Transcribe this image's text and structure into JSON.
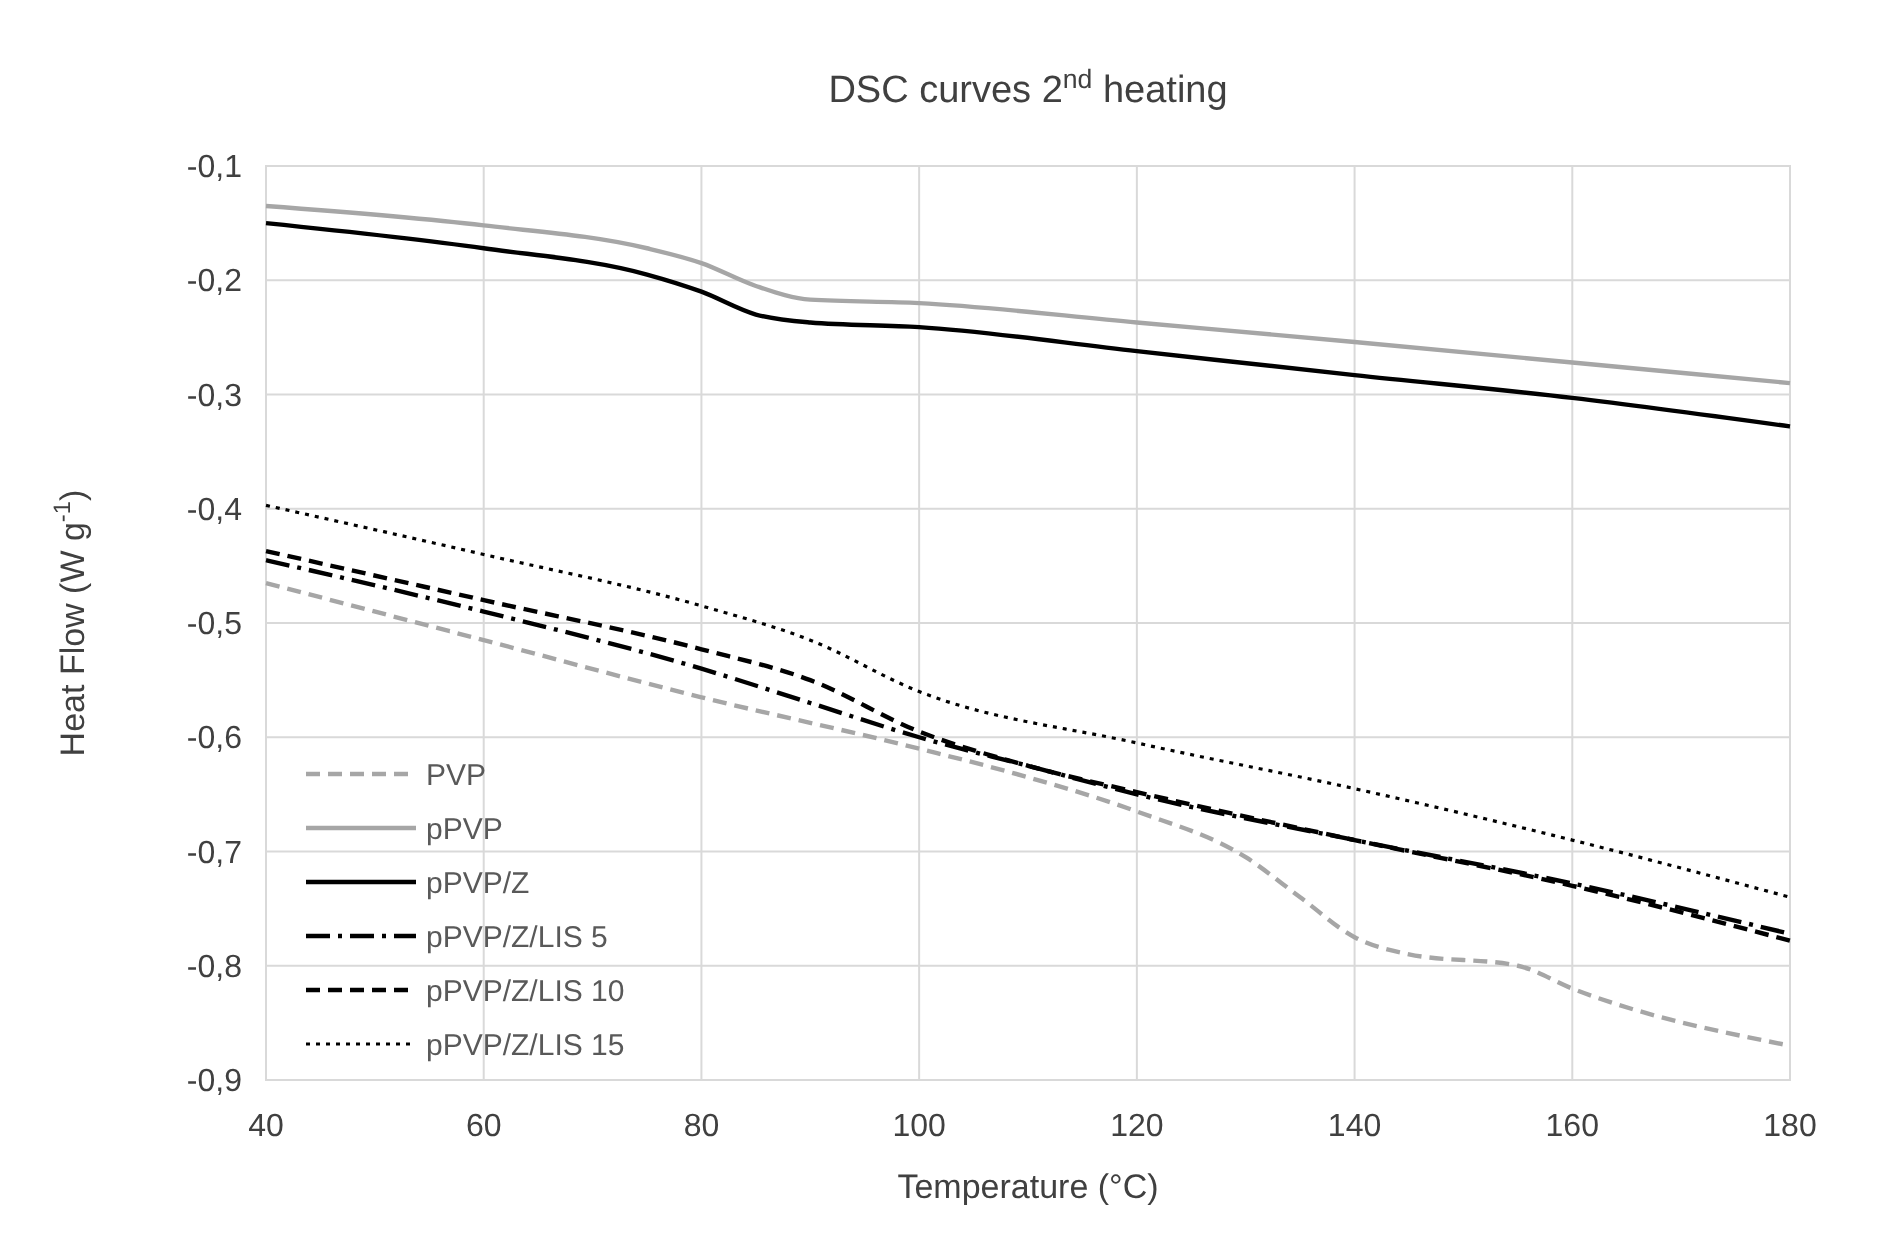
{
  "chart_data": {
    "type": "line",
    "title": "DSC curves 2$^{nd}$ heating",
    "xlabel": "Temperature (°C)",
    "ylabel": "Heat Flow (W g$^{-1}$)",
    "xlim": [
      40,
      180
    ],
    "xticks": [
      40,
      60,
      80,
      100,
      120,
      140,
      160,
      180
    ],
    "ylim": [
      -0.9,
      -0.1
    ],
    "yticks": [
      {
        "value": -0.9,
        "label": "-0,9"
      },
      {
        "value": -0.8,
        "label": "-0,8"
      },
      {
        "value": -0.7,
        "label": "-0,7"
      },
      {
        "value": -0.6,
        "label": "-0,6"
      },
      {
        "value": -0.5,
        "label": "-0,5"
      },
      {
        "value": -0.4,
        "label": "-0,4"
      },
      {
        "value": -0.3,
        "label": "-0,3"
      },
      {
        "value": -0.2,
        "label": "-0,2"
      },
      {
        "value": -0.1,
        "label": "-0,1"
      }
    ],
    "grid": true,
    "legend": "bottom left",
    "series": [
      {
        "name": "PVP",
        "color": "#a6a6a6",
        "line_style": "dashed",
        "x": [
          40,
          60,
          80,
          100,
          110,
          120,
          130,
          135,
          140,
          145,
          155,
          160,
          180
        ],
        "values": [
          -0.465,
          -0.515,
          -0.565,
          -0.61,
          -0.635,
          -0.665,
          -0.705,
          -0.74,
          -0.775,
          -0.79,
          -0.8,
          -0.82,
          -0.87
        ]
      },
      {
        "name": "pPVP",
        "color": "#a6a6a6",
        "line_style": "solid",
        "x": [
          40,
          60,
          75,
          80,
          85,
          90,
          100,
          120,
          140,
          160,
          180
        ],
        "values": [
          -0.135,
          -0.152,
          -0.172,
          -0.185,
          -0.205,
          -0.217,
          -0.22,
          -0.237,
          -0.254,
          -0.272,
          -0.29
        ]
      },
      {
        "name": "pPVP/Z",
        "color": "#000000",
        "line_style": "solid",
        "x": [
          40,
          60,
          75,
          80,
          85,
          90,
          100,
          120,
          140,
          160,
          180
        ],
        "values": [
          -0.15,
          -0.172,
          -0.195,
          -0.21,
          -0.23,
          -0.237,
          -0.241,
          -0.262,
          -0.283,
          -0.303,
          -0.328
        ]
      },
      {
        "name": "pPVP/Z/LIS 5",
        "color": "#000000",
        "line_style": "dashdot",
        "x": [
          40,
          60,
          80,
          90,
          100,
          110,
          120,
          140,
          160,
          180
        ],
        "values": [
          -0.445,
          -0.49,
          -0.54,
          -0.57,
          -0.6,
          -0.625,
          -0.65,
          -0.69,
          -0.728,
          -0.772
        ]
      },
      {
        "name": "pPVP/Z/LIS 10",
        "color": "#000000",
        "line_style": "dashed",
        "x": [
          40,
          60,
          80,
          90,
          100,
          110,
          120,
          140,
          160,
          180
        ],
        "values": [
          -0.437,
          -0.48,
          -0.523,
          -0.55,
          -0.595,
          -0.625,
          -0.648,
          -0.69,
          -0.73,
          -0.778
        ]
      },
      {
        "name": "pPVP/Z/LIS 15",
        "color": "#000000",
        "line_style": "dotted",
        "x": [
          40,
          60,
          80,
          90,
          100,
          120,
          140,
          160,
          180
        ],
        "values": [
          -0.397,
          -0.44,
          -0.485,
          -0.515,
          -0.56,
          -0.605,
          -0.645,
          -0.69,
          -0.74
        ]
      }
    ]
  }
}
